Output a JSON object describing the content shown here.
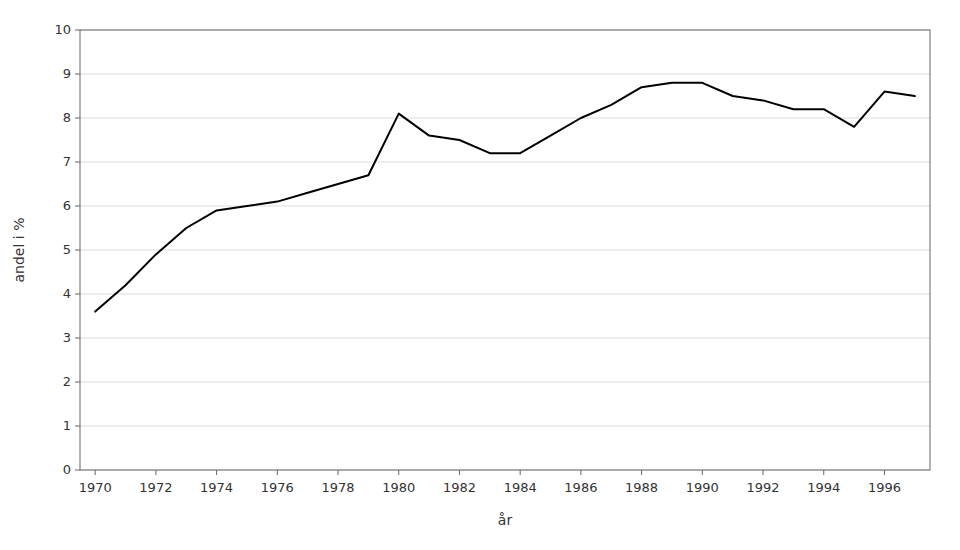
{
  "chart_data": {
    "type": "line",
    "x": [
      1970,
      1971,
      1972,
      1973,
      1974,
      1975,
      1976,
      1977,
      1978,
      1979,
      1980,
      1981,
      1982,
      1983,
      1984,
      1985,
      1986,
      1987,
      1988,
      1989,
      1990,
      1991,
      1992,
      1993,
      1994,
      1995,
      1996,
      1997
    ],
    "values": [
      3.6,
      4.2,
      4.9,
      5.5,
      5.9,
      6.0,
      6.1,
      6.3,
      6.5,
      6.7,
      8.1,
      7.6,
      7.5,
      7.2,
      7.2,
      7.6,
      8.0,
      8.3,
      8.7,
      8.8,
      8.8,
      8.5,
      8.4,
      8.2,
      8.2,
      7.8,
      8.6,
      8.5
    ],
    "color": "#000000",
    "xlabel": "år",
    "ylabel": "andel i %",
    "xlim": [
      1969.5,
      1997.5
    ],
    "xticks": [
      1970,
      1972,
      1974,
      1976,
      1978,
      1980,
      1982,
      1984,
      1986,
      1988,
      1990,
      1992,
      1994,
      1996
    ],
    "ylim": [
      0,
      10
    ],
    "yticks": [
      0,
      1,
      2,
      3,
      4,
      5,
      6,
      7,
      8,
      9,
      10
    ],
    "grid": true
  }
}
